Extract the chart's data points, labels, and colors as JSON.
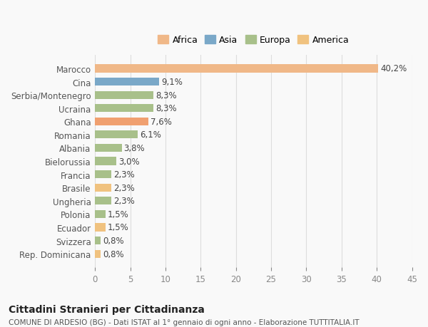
{
  "categories": [
    "Rep. Dominicana",
    "Svizzera",
    "Ecuador",
    "Polonia",
    "Ungheria",
    "Brasile",
    "Francia",
    "Bielorussia",
    "Albania",
    "Romania",
    "Ghana",
    "Ucraina",
    "Serbia/Montenegro",
    "Cina",
    "Marocco"
  ],
  "values": [
    0.8,
    0.8,
    1.5,
    1.5,
    2.3,
    2.3,
    2.3,
    3.0,
    3.8,
    6.1,
    7.6,
    8.3,
    8.3,
    9.1,
    40.2
  ],
  "labels": [
    "0,8%",
    "0,8%",
    "1,5%",
    "1,5%",
    "2,3%",
    "2,3%",
    "2,3%",
    "3,0%",
    "3,8%",
    "6,1%",
    "7,6%",
    "8,3%",
    "8,3%",
    "9,1%",
    "40,2%"
  ],
  "colors": [
    "#f0c27f",
    "#a8c08a",
    "#f0c27f",
    "#a8c08a",
    "#a8c08a",
    "#f0c27f",
    "#a8c08a",
    "#a8c08a",
    "#a8c08a",
    "#a8c08a",
    "#f0a070",
    "#a8c08a",
    "#a8c08a",
    "#7aa8c8",
    "#f0b888"
  ],
  "continent_colors": {
    "Africa": "#f0b888",
    "Asia": "#7aa8c8",
    "Europa": "#a8c08a",
    "America": "#f0c27f"
  },
  "legend_labels": [
    "Africa",
    "Asia",
    "Europa",
    "America"
  ],
  "xlim": [
    0,
    45
  ],
  "xticks": [
    0,
    5,
    10,
    15,
    20,
    25,
    30,
    35,
    40,
    45
  ],
  "title": "Cittadini Stranieri per Cittadinanza",
  "subtitle": "COMUNE DI ARDESIO (BG) - Dati ISTAT al 1° gennaio di ogni anno - Elaborazione TUTTITALIA.IT",
  "bg_color": "#f9f9f9",
  "bar_height": 0.6,
  "label_fontsize": 8.5,
  "tick_fontsize": 8.5
}
